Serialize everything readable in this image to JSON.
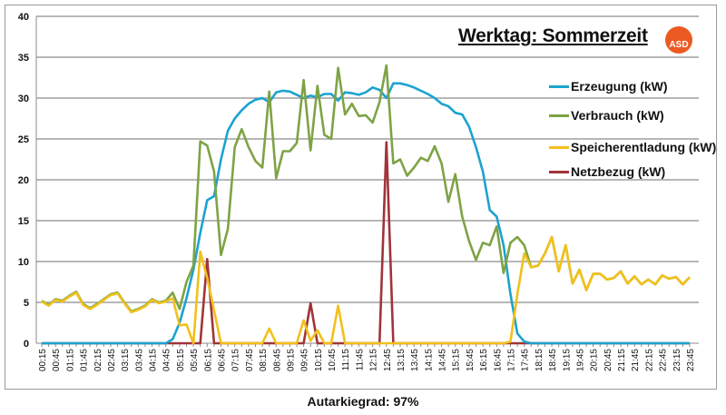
{
  "chart_data": {
    "type": "line",
    "title": "Werktag: Sommerzeit",
    "logo_text": "ASD",
    "footer": "Autarkiegrad: 97%",
    "xlabel": "",
    "ylabel": "",
    "ylim": [
      0,
      40
    ],
    "yticks": [
      "0",
      "5",
      "10",
      "15",
      "20",
      "25",
      "30",
      "35",
      "40"
    ],
    "grid": true,
    "legend_position": "right",
    "x_tick_labels": [
      "00:15",
      "00:45",
      "01:15",
      "01:45",
      "02:15",
      "02:45",
      "03:15",
      "03:45",
      "04:15",
      "04:45",
      "05:15",
      "05:45",
      "06:15",
      "06:45",
      "07:15",
      "07:45",
      "08:15",
      "08:45",
      "09:15",
      "09:45",
      "10:15",
      "10:45",
      "11:15",
      "11:45",
      "12:15",
      "12:45",
      "13:15",
      "13:45",
      "14:15",
      "14:45",
      "15:15",
      "15:45",
      "16:15",
      "16:45",
      "17:15",
      "17:45",
      "18:15",
      "18:45",
      "19:15",
      "19:45",
      "20:15",
      "20:45",
      "21:15",
      "21:45",
      "22:15",
      "22:45",
      "23:15",
      "23:45"
    ],
    "x_interval_minutes": 15,
    "series": [
      {
        "name": "Erzeugung (kW)",
        "color": "#1ba3d0",
        "values": [
          0,
          0,
          0,
          0,
          0,
          0,
          0,
          0,
          0,
          0,
          0,
          0,
          0,
          0,
          0,
          0,
          0,
          0,
          0,
          0.5,
          2.5,
          5.5,
          9,
          13.5,
          17.5,
          18,
          22.5,
          26,
          27.5,
          28.5,
          29.3,
          29.8,
          30,
          29.5,
          30.7,
          30.9,
          30.8,
          30.4,
          30,
          30.3,
          30.1,
          30.5,
          30.5,
          29.7,
          30.7,
          30.6,
          30.4,
          30.7,
          31.3,
          31,
          30,
          31.8,
          31.8,
          31.6,
          31.3,
          30.9,
          30.5,
          30,
          29.3,
          29,
          28.2,
          28,
          26.5,
          24,
          21,
          16.3,
          15.5,
          12,
          6,
          1.2,
          0.2,
          0,
          0,
          0,
          0,
          0,
          0,
          0,
          0,
          0,
          0,
          0,
          0,
          0,
          0,
          0,
          0,
          0,
          0,
          0,
          0,
          0,
          0,
          0,
          0
        ]
      },
      {
        "name": "Verbrauch (kW)",
        "color": "#7ea345",
        "values": [
          5.2,
          4.7,
          5.4,
          5.2,
          5.8,
          6.3,
          4.8,
          4.3,
          4.8,
          5.4,
          6.0,
          6.2,
          5.0,
          3.9,
          4.2,
          4.6,
          5.4,
          5.0,
          5.2,
          6.2,
          4.2,
          7.5,
          9.5,
          24.7,
          24.2,
          21,
          10.8,
          14,
          24,
          26.2,
          24,
          22.3,
          21.5,
          30.8,
          20.2,
          23.5,
          23.5,
          24.5,
          32.2,
          23.6,
          31.5,
          25.5,
          25,
          33.7,
          28,
          29.3,
          27.8,
          27.9,
          27,
          29.5,
          34,
          22,
          22.5,
          20.5,
          21.5,
          22.7,
          22.3,
          24.1,
          22,
          17.3,
          20.7,
          15.5,
          12.5,
          10.2,
          12.3,
          12,
          14.3,
          8.6,
          12.3,
          13,
          12,
          9.3,
          9.5,
          11,
          13,
          8.8,
          12,
          7.3,
          9,
          6.5,
          8.5,
          8.5,
          7.8,
          8,
          8.8,
          7.3,
          8.2,
          7.2,
          7.8,
          7.2,
          8.3,
          7.9,
          8.1,
          7.2,
          8.1
        ]
      },
      {
        "name": "Speicherentladung (kW)",
        "color": "#f2c01a",
        "values": [
          5.1,
          4.6,
          5.3,
          5.1,
          5.7,
          6.2,
          4.7,
          4.2,
          4.7,
          5.3,
          5.9,
          6.1,
          4.9,
          3.8,
          4.1,
          4.5,
          5.3,
          4.9,
          5.1,
          5.5,
          2.2,
          2.3,
          0,
          11.2,
          8,
          4,
          0,
          0,
          0,
          0,
          0,
          0,
          0,
          1.8,
          0,
          0,
          0,
          0,
          2.8,
          0.3,
          1.6,
          0,
          0,
          4.6,
          0,
          0,
          0,
          0,
          0,
          0,
          0,
          0,
          0,
          0,
          0,
          0,
          0,
          0,
          0,
          0,
          0,
          0,
          0,
          0,
          0,
          0,
          0,
          0,
          0.2,
          6,
          11,
          9.3,
          9.5,
          11,
          13,
          8.8,
          12,
          7.3,
          9,
          6.5,
          8.5,
          8.5,
          7.8,
          8,
          8.8,
          7.3,
          8.2,
          7.2,
          7.8,
          7.2,
          8.3,
          7.9,
          8.1,
          7.2,
          8.1
        ]
      },
      {
        "name": "Netzbezug (kW)",
        "color": "#a0343a",
        "values": [
          0,
          0,
          0,
          0,
          0,
          0,
          0,
          0,
          0,
          0,
          0,
          0,
          0,
          0,
          0,
          0,
          0,
          0,
          0,
          0,
          0,
          0,
          0,
          0,
          10.3,
          0,
          0,
          0,
          0,
          0,
          0,
          0,
          0,
          0,
          0,
          0,
          0,
          0,
          0,
          4.9,
          0,
          0,
          0,
          0,
          0,
          0,
          0,
          0,
          0,
          0,
          24.6,
          0,
          0,
          0,
          0,
          0,
          0,
          0,
          0,
          0,
          0,
          0,
          0,
          0,
          0,
          0,
          0,
          0,
          0,
          0,
          0,
          0,
          0,
          0,
          0,
          0,
          0,
          0,
          0,
          0,
          0,
          0,
          0,
          0,
          0,
          0,
          0,
          0,
          0,
          0,
          0,
          0,
          0,
          0,
          0
        ]
      }
    ]
  }
}
